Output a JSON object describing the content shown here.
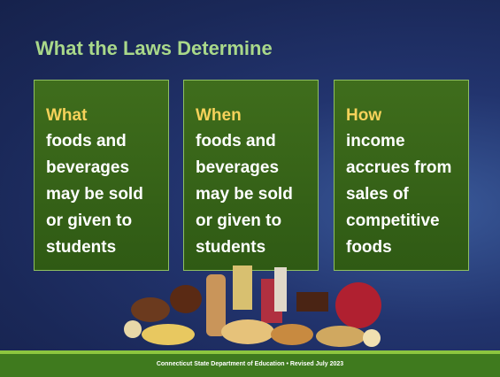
{
  "slide": {
    "title": "What the Laws Determine",
    "boxes": [
      {
        "heading": "What",
        "lines": [
          "foods and",
          "beverages",
          "may be sold",
          "or given to",
          "students"
        ]
      },
      {
        "heading": "When",
        "lines": [
          "foods and",
          "beverages",
          "may be sold",
          "or given to",
          "students"
        ]
      },
      {
        "heading": "How",
        "lines": [
          "income",
          "accrues from",
          "sales of",
          "competitive",
          "foods"
        ]
      }
    ],
    "footer": "Connecticut State Department of Education • Revised July 2023"
  }
}
